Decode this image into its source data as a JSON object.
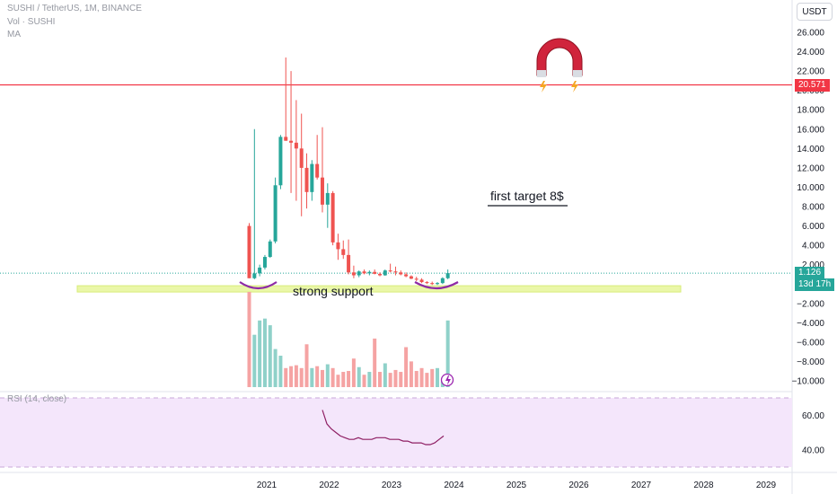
{
  "header": {
    "symbol_line": "SUSHI / TetherUS, 1M, BINANCE",
    "vol_label": "Vol · SUSHI",
    "ma_label": "MA",
    "currency": "USDT"
  },
  "rsi": {
    "label": "RSI (14, close)"
  },
  "annotations": {
    "target": "first target 8$",
    "support": "strong support"
  },
  "badges": {
    "resistance": "20.571",
    "price": "1.126",
    "countdown": "13d 17h"
  },
  "colors": {
    "up": "#26a69a",
    "down": "#ef5350",
    "vol_up": "#8fd1c9",
    "vol_down": "#f5a3a3",
    "resistance": "#f23645",
    "price_line": "#26a69a",
    "support_band": "#eaf7a8",
    "arc": "#8e2aa6",
    "rsi_line": "#8e1e63",
    "rsi_band": "#f4e6fb"
  },
  "chart_data": {
    "type": "candlestick",
    "price_axis": {
      "ticks": [
        "26.000",
        "24.000",
        "22.000",
        "20.000",
        "18.000",
        "16.000",
        "14.000",
        "12.000",
        "10.000",
        "8.000",
        "6.000",
        "4.000",
        "2.000",
        "−2.000",
        "−4.000",
        "−6.000",
        "−8.000",
        "−10.000"
      ],
      "min": -10,
      "max": 26
    },
    "time_axis": [
      "2021",
      "2022",
      "2023",
      "2024",
      "2025",
      "2026",
      "2027",
      "2028",
      "2029"
    ],
    "resistance_level": 20.571,
    "last_price": 1.126,
    "support_level": -0.5,
    "target_level": 8,
    "candles": [
      {
        "o": 6.0,
        "h": 6.3,
        "l": 0.6,
        "c": 0.6
      },
      {
        "o": 0.6,
        "h": 16.0,
        "l": 0.5,
        "c": 1.1
      },
      {
        "o": 1.1,
        "h": 2.0,
        "l": 0.8,
        "c": 1.7
      },
      {
        "o": 1.7,
        "h": 3.0,
        "l": 1.5,
        "c": 2.8
      },
      {
        "o": 2.8,
        "h": 4.6,
        "l": 2.7,
        "c": 4.4
      },
      {
        "o": 4.4,
        "h": 11.0,
        "l": 4.2,
        "c": 10.2
      },
      {
        "o": 10.2,
        "h": 15.4,
        "l": 9.8,
        "c": 15.2
      },
      {
        "o": 15.2,
        "h": 23.4,
        "l": 14.8,
        "c": 14.8
      },
      {
        "o": 14.8,
        "h": 22.0,
        "l": 9.4,
        "c": 14.6
      },
      {
        "o": 14.6,
        "h": 19.0,
        "l": 8.6,
        "c": 14.0
      },
      {
        "o": 14.0,
        "h": 17.6,
        "l": 7.0,
        "c": 12.0
      },
      {
        "o": 12.0,
        "h": 13.5,
        "l": 7.8,
        "c": 9.5
      },
      {
        "o": 9.5,
        "h": 12.8,
        "l": 8.6,
        "c": 12.4
      },
      {
        "o": 12.4,
        "h": 15.4,
        "l": 10.8,
        "c": 11.0
      },
      {
        "o": 11.0,
        "h": 16.2,
        "l": 7.4,
        "c": 8.2
      },
      {
        "o": 8.2,
        "h": 10.4,
        "l": 5.8,
        "c": 9.4
      },
      {
        "o": 9.4,
        "h": 9.6,
        "l": 4.0,
        "c": 4.3
      },
      {
        "o": 4.3,
        "h": 5.2,
        "l": 2.5,
        "c": 3.6
      },
      {
        "o": 3.6,
        "h": 4.5,
        "l": 2.6,
        "c": 3.0
      },
      {
        "o": 3.0,
        "h": 4.6,
        "l": 1.0,
        "c": 1.2
      },
      {
        "o": 1.2,
        "h": 1.9,
        "l": 0.6,
        "c": 0.9
      },
      {
        "o": 0.9,
        "h": 1.4,
        "l": 0.7,
        "c": 1.3
      },
      {
        "o": 1.3,
        "h": 1.5,
        "l": 1.0,
        "c": 1.1
      },
      {
        "o": 1.1,
        "h": 1.4,
        "l": 0.9,
        "c": 1.25
      },
      {
        "o": 1.25,
        "h": 1.5,
        "l": 1.0,
        "c": 1.05
      },
      {
        "o": 1.05,
        "h": 1.2,
        "l": 0.8,
        "c": 0.9
      },
      {
        "o": 0.9,
        "h": 1.5,
        "l": 0.85,
        "c": 1.4
      },
      {
        "o": 1.4,
        "h": 2.1,
        "l": 1.2,
        "c": 1.3
      },
      {
        "o": 1.3,
        "h": 1.8,
        "l": 0.9,
        "c": 1.2
      },
      {
        "o": 1.2,
        "h": 1.4,
        "l": 0.9,
        "c": 1.0
      },
      {
        "o": 1.0,
        "h": 1.2,
        "l": 0.7,
        "c": 0.8
      },
      {
        "o": 0.8,
        "h": 0.9,
        "l": 0.5,
        "c": 0.55
      },
      {
        "o": 0.55,
        "h": 0.75,
        "l": 0.3,
        "c": 0.45
      },
      {
        "o": 0.45,
        "h": 0.6,
        "l": 0.1,
        "c": 0.2
      },
      {
        "o": 0.2,
        "h": 0.3,
        "l": 0.0,
        "c": 0.1
      },
      {
        "o": 0.1,
        "h": 0.25,
        "l": -0.1,
        "c": 0.0
      },
      {
        "o": 0.0,
        "h": 0.2,
        "l": -0.1,
        "c": 0.1
      },
      {
        "o": 0.1,
        "h": 0.7,
        "l": 0.0,
        "c": 0.6
      },
      {
        "o": 0.6,
        "h": 1.5,
        "l": 0.5,
        "c": 1.126
      }
    ],
    "volume_relative": [
      1.0,
      0.55,
      0.7,
      0.72,
      0.65,
      0.4,
      0.33,
      0.2,
      0.22,
      0.23,
      0.2,
      0.45,
      0.2,
      0.22,
      0.18,
      0.24,
      0.2,
      0.13,
      0.16,
      0.17,
      0.3,
      0.21,
      0.13,
      0.16,
      0.51,
      0.16,
      0.25,
      0.15,
      0.18,
      0.16,
      0.42,
      0.27,
      0.17,
      0.2,
      0.15,
      0.19,
      0.2,
      0.06,
      0.7
    ],
    "rsi": {
      "ticks": [
        "60.00",
        "40.00"
      ],
      "min": 30,
      "max": 70,
      "values": [
        63,
        55,
        52,
        50,
        48,
        47,
        46,
        46,
        47,
        46,
        46,
        46,
        47,
        47,
        47,
        46,
        46,
        46,
        45,
        45,
        44,
        44,
        44,
        43,
        43,
        44,
        46,
        48
      ]
    }
  }
}
